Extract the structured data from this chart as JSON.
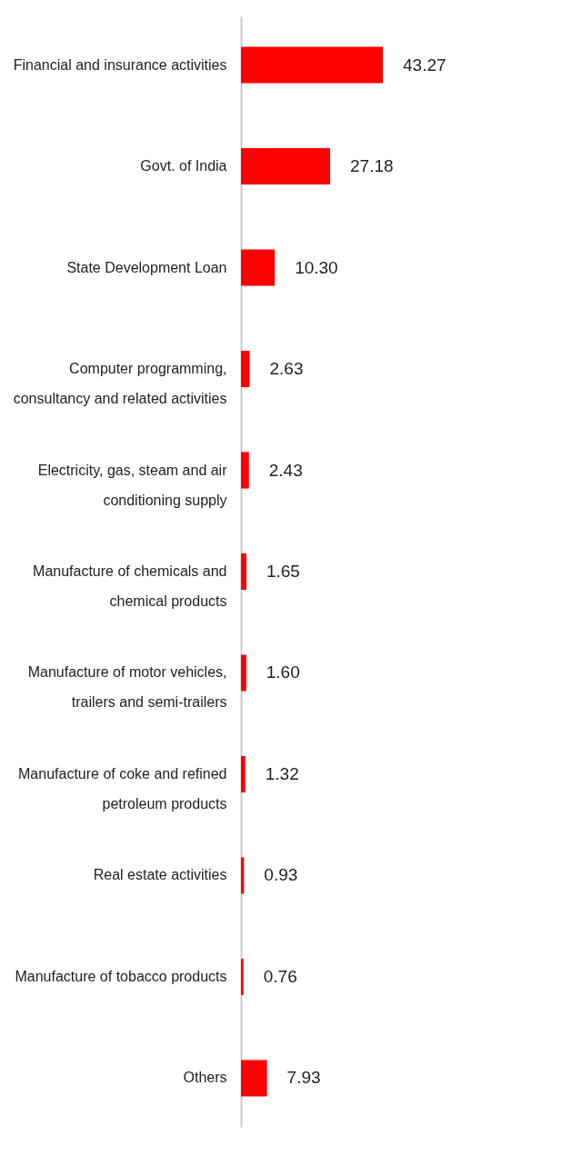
{
  "chart_data": {
    "type": "bar",
    "orientation": "horizontal",
    "categories": [
      "Financial and insurance activities",
      "Govt. of India",
      "State Development Loan",
      "Computer programming, consultancy and related activities",
      "Electricity, gas, steam and air conditioning supply",
      "Manufacture of chemicals and chemical products",
      "Manufacture of motor vehicles, trailers and semi-trailers",
      "Manufacture of coke and refined petroleum products",
      "Real estate activities",
      "Manufacture of tobacco products",
      "Others"
    ],
    "values": [
      43.27,
      27.18,
      10.3,
      2.63,
      2.43,
      1.65,
      1.6,
      1.32,
      0.93,
      0.76,
      7.93
    ],
    "value_labels": [
      "43.27",
      "27.18",
      "10.30",
      "2.63",
      "2.43",
      "1.65",
      "1.60",
      "1.32",
      "0.93",
      "0.76",
      "7.93"
    ],
    "color": "#ff0000"
  }
}
